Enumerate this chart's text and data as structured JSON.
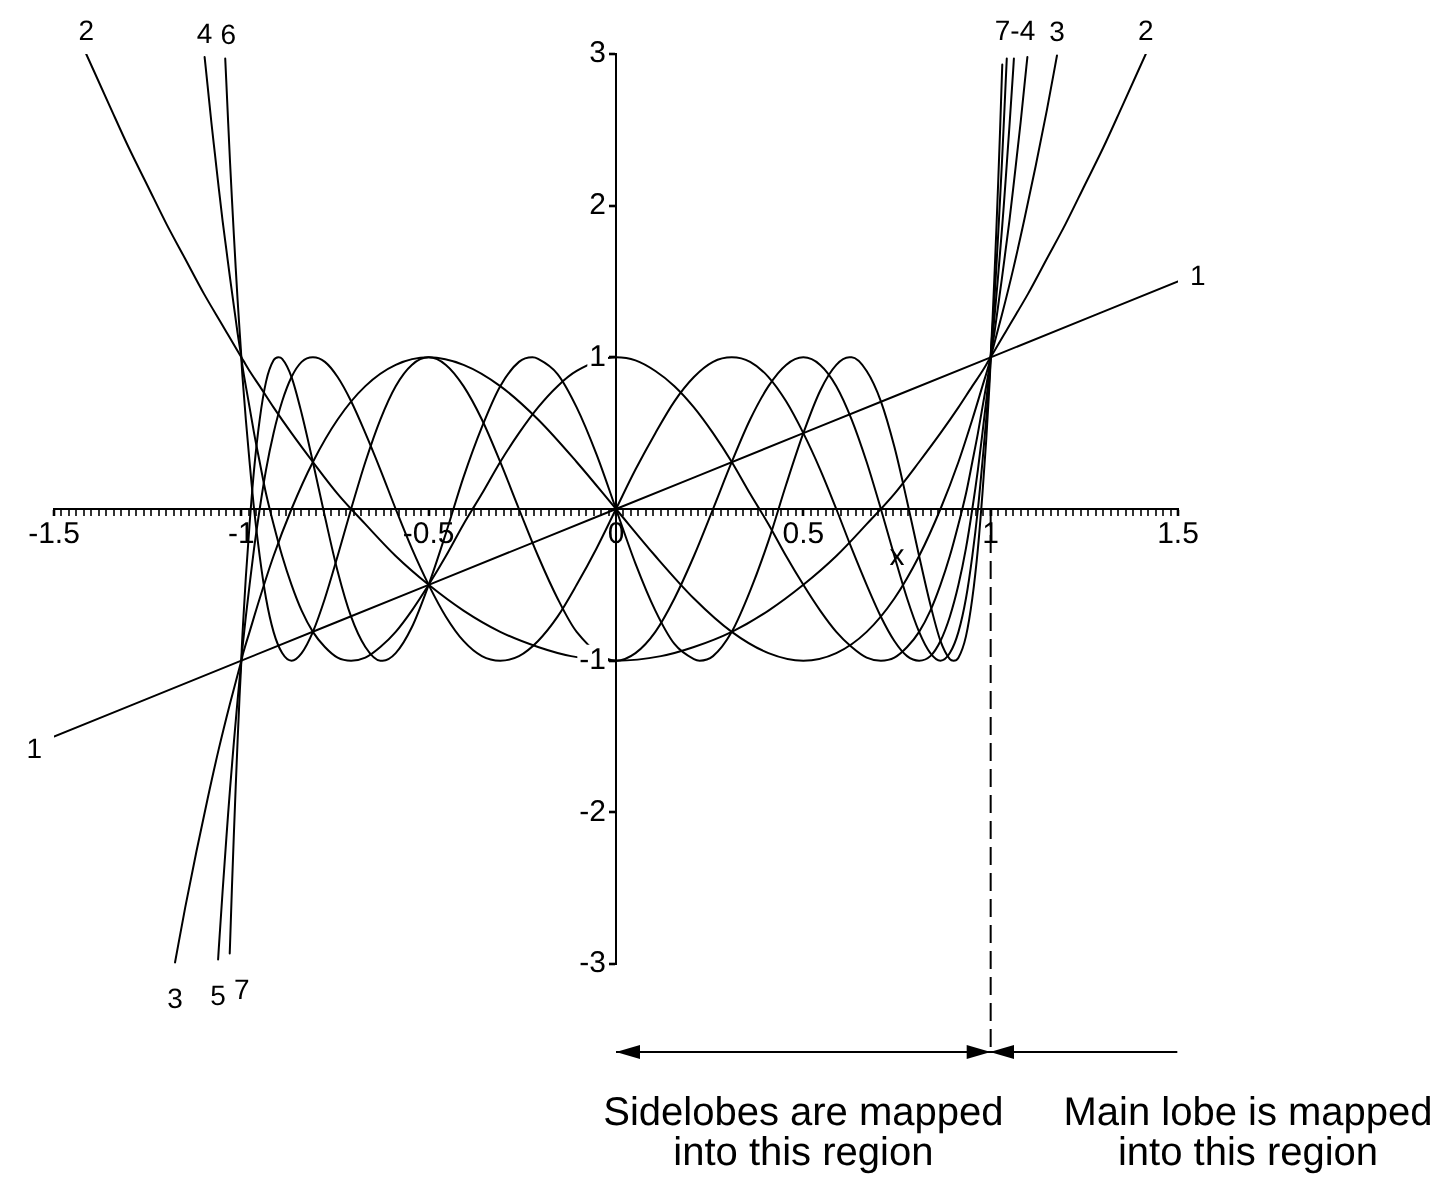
{
  "chart_data": {
    "type": "line",
    "xlabel": "x",
    "xlim": [
      -1.5,
      1.5
    ],
    "ylim": [
      -3,
      3
    ],
    "xticks": [
      -1.5,
      {
        "value": -1.48,
        "label": null
      },
      {
        "value": -1.46,
        "label": null
      },
      {
        "value": -1.44,
        "label": null
      },
      {
        "value": -1.42,
        "label": null
      },
      {
        "value": -1.4,
        "label": null
      },
      {
        "value": -1.38,
        "label": null
      },
      {
        "value": -1.36,
        "label": null
      },
      {
        "value": -1.34,
        "label": null
      },
      {
        "value": -1.32,
        "label": null
      },
      {
        "value": -1.3,
        "label": null
      },
      {
        "value": -1.28,
        "label": null
      },
      {
        "value": -1.26,
        "label": null
      },
      {
        "value": -1.24,
        "label": null
      },
      {
        "value": -1.22,
        "label": null
      },
      {
        "value": -1.2,
        "label": null
      },
      {
        "value": -1.18,
        "label": null
      },
      {
        "value": -1.16,
        "label": null
      },
      {
        "value": -1.14,
        "label": null
      },
      {
        "value": -1.12,
        "label": null
      },
      {
        "value": -1.1,
        "label": null
      },
      {
        "value": -1.08,
        "label": null
      },
      {
        "value": -1.06,
        "label": null
      },
      {
        "value": -1.04,
        "label": null
      },
      {
        "value": -1.02,
        "label": null
      },
      -1,
      {
        "value": -0.98,
        "label": null
      },
      {
        "value": -0.96,
        "label": null
      },
      {
        "value": -0.94,
        "label": null
      },
      {
        "value": -0.92,
        "label": null
      },
      {
        "value": -0.9,
        "label": null
      },
      {
        "value": -0.88,
        "label": null
      },
      {
        "value": -0.86,
        "label": null
      },
      {
        "value": -0.84,
        "label": null
      },
      {
        "value": -0.82,
        "label": null
      },
      {
        "value": -0.8,
        "label": null
      },
      {
        "value": -0.78,
        "label": null
      },
      {
        "value": -0.76,
        "label": null
      },
      {
        "value": -0.74,
        "label": null
      },
      {
        "value": -0.72,
        "label": null
      },
      {
        "value": -0.7,
        "label": null
      },
      {
        "value": -0.68,
        "label": null
      },
      {
        "value": -0.66,
        "label": null
      },
      {
        "value": -0.64,
        "label": null
      },
      {
        "value": -0.62,
        "label": null
      },
      {
        "value": -0.6,
        "label": null
      },
      {
        "value": -0.58,
        "label": null
      },
      {
        "value": -0.56,
        "label": null
      },
      {
        "value": -0.54,
        "label": null
      },
      {
        "value": -0.52,
        "label": null
      },
      -0.5,
      {
        "value": -0.48,
        "label": null
      },
      {
        "value": -0.46,
        "label": null
      },
      {
        "value": -0.44,
        "label": null
      },
      {
        "value": -0.42,
        "label": null
      },
      {
        "value": -0.4,
        "label": null
      },
      {
        "value": -0.38,
        "label": null
      },
      {
        "value": -0.36,
        "label": null
      },
      {
        "value": -0.34,
        "label": null
      },
      {
        "value": -0.32,
        "label": null
      },
      {
        "value": -0.3,
        "label": null
      },
      {
        "value": -0.28,
        "label": null
      },
      {
        "value": -0.26,
        "label": null
      },
      {
        "value": -0.24,
        "label": null
      },
      {
        "value": -0.22,
        "label": null
      },
      {
        "value": -0.2,
        "label": null
      },
      {
        "value": -0.18,
        "label": null
      },
      {
        "value": -0.16,
        "label": null
      },
      {
        "value": -0.14,
        "label": null
      },
      {
        "value": -0.12,
        "label": null
      },
      {
        "value": -0.1,
        "label": null
      },
      {
        "value": -0.08,
        "label": null
      },
      {
        "value": -0.06,
        "label": null
      },
      {
        "value": -0.04,
        "label": null
      },
      {
        "value": -0.02,
        "label": null
      },
      0,
      {
        "value": 0.02,
        "label": null
      },
      {
        "value": 0.04,
        "label": null
      },
      {
        "value": 0.06,
        "label": null
      },
      {
        "value": 0.08,
        "label": null
      },
      {
        "value": 0.1,
        "label": null
      },
      {
        "value": 0.12,
        "label": null
      },
      {
        "value": 0.14,
        "label": null
      },
      {
        "value": 0.16,
        "label": null
      },
      {
        "value": 0.18,
        "label": null
      },
      {
        "value": 0.2,
        "label": null
      },
      {
        "value": 0.22,
        "label": null
      },
      {
        "value": 0.24,
        "label": null
      },
      {
        "value": 0.26,
        "label": null
      },
      {
        "value": 0.28,
        "label": null
      },
      {
        "value": 0.3,
        "label": null
      },
      {
        "value": 0.32,
        "label": null
      },
      {
        "value": 0.34,
        "label": null
      },
      {
        "value": 0.36,
        "label": null
      },
      {
        "value": 0.38,
        "label": null
      },
      {
        "value": 0.4,
        "label": null
      },
      {
        "value": 0.42,
        "label": null
      },
      {
        "value": 0.44,
        "label": null
      },
      {
        "value": 0.46,
        "label": null
      },
      {
        "value": 0.48,
        "label": null
      },
      0.5,
      {
        "value": 0.52,
        "label": null
      },
      {
        "value": 0.54,
        "label": null
      },
      {
        "value": 0.56,
        "label": null
      },
      {
        "value": 0.58,
        "label": null
      },
      {
        "value": 0.6,
        "label": null
      },
      {
        "value": 0.62,
        "label": null
      },
      {
        "value": 0.64,
        "label": null
      },
      {
        "value": 0.66,
        "label": null
      },
      {
        "value": 0.68,
        "label": null
      },
      {
        "value": 0.7,
        "label": null
      },
      {
        "value": 0.72,
        "label": null
      },
      {
        "value": 0.74,
        "label": null
      },
      {
        "value": 0.76,
        "label": null
      },
      {
        "value": 0.78,
        "label": null
      },
      {
        "value": 0.8,
        "label": null
      },
      {
        "value": 0.82,
        "label": null
      },
      {
        "value": 0.84,
        "label": null
      },
      {
        "value": 0.86,
        "label": null
      },
      {
        "value": 0.88,
        "label": null
      },
      {
        "value": 0.9,
        "label": null
      },
      {
        "value": 0.92,
        "label": null
      },
      {
        "value": 0.94,
        "label": null
      },
      {
        "value": 0.96,
        "label": null
      },
      {
        "value": 0.98,
        "label": null
      },
      1,
      {
        "value": 1.02,
        "label": null
      },
      {
        "value": 1.04,
        "label": null
      },
      {
        "value": 1.06,
        "label": null
      },
      {
        "value": 1.08,
        "label": null
      },
      {
        "value": 1.1,
        "label": null
      },
      {
        "value": 1.12,
        "label": null
      },
      {
        "value": 1.14,
        "label": null
      },
      {
        "value": 1.16,
        "label": null
      },
      {
        "value": 1.18,
        "label": null
      },
      {
        "value": 1.2,
        "label": null
      },
      {
        "value": 1.22,
        "label": null
      },
      {
        "value": 1.24,
        "label": null
      },
      {
        "value": 1.26,
        "label": null
      },
      {
        "value": 1.28,
        "label": null
      },
      {
        "value": 1.3,
        "label": null
      },
      {
        "value": 1.32,
        "label": null
      },
      {
        "value": 1.34,
        "label": null
      },
      {
        "value": 1.36,
        "label": null
      },
      {
        "value": 1.38,
        "label": null
      },
      {
        "value": 1.4,
        "label": null
      },
      {
        "value": 1.42,
        "label": null
      },
      {
        "value": 1.44,
        "label": null
      },
      {
        "value": 1.46,
        "label": null
      },
      {
        "value": 1.48,
        "label": null
      },
      1.5
    ],
    "yticks": [
      -3,
      -2,
      -1,
      1,
      2,
      3
    ],
    "grid": false,
    "legend": false,
    "marker": "none",
    "series": [
      {
        "color": "#000000",
        "x": [
          -1.5,
          -1,
          -0.5,
          0,
          0.5,
          1,
          1.5
        ],
        "values": [
          -1.5,
          -1,
          -0.5,
          0,
          0.5,
          1,
          1.5
        ]
      },
      {
        "color": "#000000",
        "x": [
          -1.414,
          -1.35,
          -1.3,
          -1.25,
          -1.2,
          -1.15,
          -1.1,
          -1.05,
          -1,
          -0.995,
          -0.978,
          -0.951,
          -0.914,
          -0.866,
          -0.809,
          -0.743,
          -0.669,
          -0.588,
          -0.5,
          -0.407,
          -0.309,
          -0.208,
          -0.12,
          0,
          0.12,
          0.208,
          0.309,
          0.407,
          0.5,
          0.588,
          0.669,
          0.743,
          0.809,
          0.866,
          0.914,
          0.951,
          0.978,
          0.995,
          1,
          1.05,
          1.1,
          1.15,
          1.2,
          1.25,
          1.3,
          1.35,
          1.414
        ],
        "values": [
          3,
          2.65,
          2.38,
          2.13,
          1.88,
          1.65,
          1.42,
          1.21,
          1,
          0.98,
          0.91,
          0.81,
          0.67,
          0.5,
          0.31,
          0.1,
          -0.1,
          -0.31,
          -0.5,
          -0.67,
          -0.81,
          -0.91,
          -0.97,
          -1,
          -0.97,
          -0.91,
          -0.81,
          -0.67,
          -0.5,
          -0.31,
          -0.1,
          0.1,
          0.31,
          0.5,
          0.67,
          0.81,
          0.91,
          0.98,
          1,
          1.21,
          1.42,
          1.65,
          1.88,
          2.13,
          2.38,
          2.65,
          3
        ]
      },
      {
        "color": "#000000",
        "x": [
          -1.177,
          -1.15,
          -1.12,
          -1.09,
          -1.06,
          -1.03,
          -1,
          -0.995,
          -0.978,
          -0.951,
          -0.914,
          -0.866,
          -0.809,
          -0.743,
          -0.669,
          -0.588,
          -0.5,
          -0.407,
          -0.309,
          -0.208,
          -0.105,
          0,
          0.105,
          0.208,
          0.309,
          0.407,
          0.5,
          0.588,
          0.669,
          0.743,
          0.809,
          0.866,
          0.914,
          0.951,
          0.978,
          0.995,
          1,
          1.03,
          1.06,
          1.09,
          1.12,
          1.15,
          1.177
        ],
        "values": [
          -2.99,
          -2.63,
          -2.26,
          -1.91,
          -1.58,
          -1.28,
          -1,
          -0.95,
          -0.81,
          -0.59,
          -0.31,
          0,
          0.31,
          0.59,
          0.81,
          0.95,
          1,
          0.95,
          0.81,
          0.59,
          0.31,
          0,
          -0.31,
          -0.59,
          -0.81,
          -0.95,
          -1,
          -0.95,
          -0.81,
          -0.59,
          -0.31,
          0,
          0.31,
          0.59,
          0.81,
          0.95,
          1,
          1.28,
          1.58,
          1.91,
          2.26,
          2.63,
          2.99
        ]
      },
      {
        "color": "#000000",
        "x": [
          -1.098,
          -1.09,
          -1.08,
          -1.07,
          -1.06,
          -1.05,
          -1.04,
          -1.03,
          -1.02,
          -1.01,
          -1,
          -0.999,
          -0.995,
          -0.988,
          -0.978,
          -0.966,
          -0.951,
          -0.934,
          -0.914,
          -0.891,
          -0.866,
          -0.839,
          -0.809,
          -0.777,
          -0.743,
          -0.707,
          -0.669,
          -0.629,
          -0.588,
          -0.545,
          -0.5,
          -0.454,
          -0.407,
          -0.358,
          -0.309,
          -0.259,
          -0.208,
          -0.156,
          -0.105,
          0,
          0.052,
          0.105,
          0.156,
          0.208,
          0.259,
          0.309,
          0.358,
          0.407,
          0.454,
          0.5,
          0.545,
          0.588,
          0.629,
          0.669,
          0.707,
          0.743,
          0.777,
          0.809,
          0.839,
          0.866,
          0.891,
          0.914,
          0.934,
          0.951,
          0.966,
          0.978,
          0.988,
          0.995,
          0.999,
          1,
          1.01,
          1.02,
          1.03,
          1.04,
          1.05,
          1.06,
          1.07,
          1.08,
          1.09,
          1.098
        ],
        "values": [
          2.98,
          2.79,
          2.55,
          2.33,
          2.11,
          1.9,
          1.71,
          1.52,
          1.34,
          1.16,
          1,
          0.98,
          0.91,
          0.81,
          0.67,
          0.5,
          0.31,
          0.1,
          -0.1,
          -0.31,
          -0.5,
          -0.67,
          -0.81,
          -0.91,
          -0.98,
          -1,
          -0.98,
          -0.91,
          -0.81,
          -0.67,
          -0.5,
          -0.31,
          -0.1,
          0.1,
          0.31,
          0.5,
          0.67,
          0.81,
          0.91,
          1,
          0.98,
          0.91,
          0.81,
          0.67,
          0.5,
          0.31,
          0.1,
          -0.1,
          -0.31,
          -0.5,
          -0.67,
          -0.81,
          -0.91,
          -0.98,
          -1,
          -0.98,
          -0.91,
          -0.81,
          -0.67,
          -0.5,
          -0.31,
          -0.1,
          0.1,
          0.31,
          0.5,
          0.67,
          0.81,
          0.91,
          0.98,
          1,
          1.16,
          1.34,
          1.52,
          1.71,
          1.9,
          2.11,
          2.33,
          2.55,
          2.79,
          2.98
        ]
      },
      {
        "color": "#000000",
        "x": [
          -1.062,
          -1.06,
          -1.05,
          -1.04,
          -1.035,
          -1.03,
          -1.025,
          -1.02,
          -1.015,
          -1.01,
          -1.005,
          -1,
          -0.999,
          -0.995,
          -0.988,
          -0.978,
          -0.966,
          -0.951,
          -0.934,
          -0.914,
          -0.891,
          -0.866,
          -0.839,
          -0.809,
          -0.777,
          -0.743,
          -0.707,
          -0.669,
          -0.629,
          -0.588,
          -0.545,
          -0.5,
          -0.454,
          -0.407,
          -0.358,
          -0.309,
          -0.259,
          -0.208,
          -0.156,
          -0.105,
          -0.052,
          0,
          0.052,
          0.105,
          0.156,
          0.208,
          0.259,
          0.309,
          0.358,
          0.407,
          0.454,
          0.5,
          0.545,
          0.588,
          0.629,
          0.669,
          0.707,
          0.743,
          0.777,
          0.809,
          0.839,
          0.866,
          0.891,
          0.914,
          0.934,
          0.951,
          0.966,
          0.978,
          0.988,
          0.995,
          0.999,
          1,
          1.005,
          1.01,
          1.015,
          1.02,
          1.025,
          1.03,
          1.035,
          1.04,
          1.05,
          1.06,
          1.062
        ],
        "values": [
          -2.97,
          -2.89,
          -2.52,
          -2.17,
          -2,
          -1.84,
          -1.69,
          -1.54,
          -1.4,
          -1.26,
          -1.13,
          -1,
          -0.97,
          -0.87,
          -0.71,
          -0.5,
          -0.26,
          0,
          0.26,
          0.5,
          0.71,
          0.87,
          0.97,
          1,
          0.97,
          0.87,
          0.71,
          0.5,
          0.26,
          0,
          -0.26,
          -0.5,
          -0.71,
          -0.87,
          -0.97,
          -1,
          -0.97,
          -0.87,
          -0.71,
          -0.5,
          -0.26,
          0,
          0.26,
          0.5,
          0.71,
          0.87,
          0.97,
          1,
          0.97,
          0.87,
          0.71,
          0.5,
          0.26,
          0,
          -0.26,
          -0.5,
          -0.71,
          -0.87,
          -0.97,
          -1,
          -0.97,
          -0.87,
          -0.71,
          -0.5,
          -0.26,
          0,
          0.26,
          0.5,
          0.71,
          0.87,
          0.97,
          1,
          1.13,
          1.26,
          1.4,
          1.54,
          1.69,
          1.84,
          2,
          2.17,
          2.52,
          2.89,
          2.97
        ]
      },
      {
        "color": "#000000",
        "x": [
          -1.043,
          -1.04,
          -1.035,
          -1.03,
          -1.025,
          -1.02,
          -1.015,
          -1.01,
          -1.005,
          -1,
          -0.999,
          -0.995,
          -0.988,
          -0.978,
          -0.966,
          -0.951,
          -0.934,
          -0.914,
          -0.891,
          -0.866,
          -0.839,
          -0.809,
          -0.777,
          -0.743,
          -0.707,
          -0.669,
          -0.629,
          -0.588,
          -0.545,
          -0.5,
          -0.454,
          -0.407,
          -0.358,
          -0.309,
          -0.259,
          -0.208,
          -0.156,
          -0.105,
          0,
          0.052,
          0.105,
          0.156,
          0.208,
          0.259,
          0.309,
          0.358,
          0.407,
          0.454,
          0.5,
          0.545,
          0.588,
          0.629,
          0.669,
          0.707,
          0.743,
          0.777,
          0.809,
          0.839,
          0.866,
          0.891,
          0.914,
          0.934,
          0.951,
          0.966,
          0.978,
          0.988,
          0.995,
          0.999,
          1,
          1.005,
          1.01,
          1.015,
          1.02,
          1.025,
          1.03,
          1.035,
          1.04,
          1.043
        ],
        "values": [
          2.97,
          2.81,
          2.54,
          2.28,
          2.04,
          1.81,
          1.59,
          1.38,
          1.19,
          1,
          0.95,
          0.81,
          0.59,
          0.31,
          0,
          -0.31,
          -0.59,
          -0.81,
          -0.95,
          -1,
          -0.95,
          -0.81,
          -0.59,
          -0.31,
          0,
          0.31,
          0.59,
          0.81,
          0.95,
          1,
          0.95,
          0.81,
          0.59,
          0.31,
          0,
          -0.31,
          -0.59,
          -0.81,
          -1,
          -0.95,
          -0.81,
          -0.59,
          -0.31,
          0,
          0.31,
          0.59,
          0.81,
          0.95,
          1,
          0.95,
          0.81,
          0.59,
          0.31,
          0,
          -0.31,
          -0.59,
          -0.81,
          -0.95,
          -1,
          -0.95,
          -0.81,
          -0.59,
          -0.31,
          0,
          0.31,
          0.59,
          0.81,
          0.95,
          1,
          1.19,
          1.38,
          1.59,
          1.81,
          2.04,
          2.28,
          2.54,
          2.81,
          2.97
        ]
      },
      {
        "color": "#000000",
        "x": [
          -1.031,
          -1.03,
          -1.025,
          -1.02,
          -1.015,
          -1.01,
          -1.005,
          -1,
          -0.999,
          -0.995,
          -0.988,
          -0.978,
          -0.966,
          -0.951,
          -0.934,
          -0.914,
          -0.901,
          -0.891,
          -0.866,
          -0.839,
          -0.809,
          -0.777,
          -0.743,
          -0.707,
          -0.669,
          -0.629,
          -0.623,
          -0.588,
          -0.545,
          -0.5,
          -0.454,
          -0.407,
          -0.358,
          -0.309,
          -0.259,
          -0.223,
          -0.208,
          -0.156,
          -0.105,
          -0.052,
          0,
          0.052,
          0.105,
          0.156,
          0.208,
          0.223,
          0.259,
          0.309,
          0.358,
          0.407,
          0.454,
          0.5,
          0.545,
          0.588,
          0.623,
          0.629,
          0.669,
          0.707,
          0.743,
          0.777,
          0.809,
          0.839,
          0.866,
          0.891,
          0.901,
          0.914,
          0.934,
          0.951,
          0.966,
          0.978,
          0.988,
          0.995,
          0.999,
          1,
          1.005,
          1.01,
          1.015,
          1.02,
          1.025,
          1.03,
          1.031
        ],
        "values": [
          -2.93,
          -2.86,
          -2.49,
          -2.15,
          -1.83,
          -1.53,
          -1.25,
          -1,
          -0.93,
          -0.74,
          -0.45,
          -0.1,
          0.26,
          0.59,
          0.84,
          0.98,
          1,
          0.99,
          0.87,
          0.63,
          0.31,
          -0.05,
          -0.41,
          -0.71,
          -0.91,
          -1,
          -1,
          -0.95,
          -0.78,
          -0.5,
          -0.16,
          0.21,
          0.54,
          0.81,
          0.97,
          1,
          0.99,
          0.89,
          0.67,
          0.36,
          0,
          -0.36,
          -0.67,
          -0.89,
          -0.99,
          -1,
          -0.97,
          -0.81,
          -0.54,
          -0.21,
          0.16,
          0.5,
          0.78,
          0.95,
          1,
          1,
          0.91,
          0.71,
          0.41,
          0.05,
          -0.31,
          -0.63,
          -0.87,
          -0.99,
          -1,
          -0.98,
          -0.84,
          -0.59,
          -0.26,
          0.1,
          0.45,
          0.74,
          0.93,
          1,
          1.25,
          1.53,
          1.83,
          2.15,
          2.49,
          2.86,
          2.93
        ]
      }
    ],
    "annotations": [
      {
        "text": "2",
        "x": -1.414,
        "y": 3
      },
      {
        "text": "4",
        "x": -1.098,
        "y": 2.98
      },
      {
        "text": "6",
        "x": -1.043,
        "y": 2.97
      },
      {
        "text": "7-4",
        "x": 1.065,
        "y": 3
      },
      {
        "text": "3",
        "x": 1.177,
        "y": 2.99
      },
      {
        "text": "2",
        "x": 1.414,
        "y": 3
      },
      {
        "text": "1",
        "x": -1.5,
        "y": -1.5
      },
      {
        "text": "1",
        "x": 1.5,
        "y": 1.5
      },
      {
        "text": "3",
        "x": -1.177,
        "y": -2.99
      },
      {
        "text": "5",
        "x": -1.062,
        "y": -2.97
      },
      {
        "text": "7",
        "x": -1.031,
        "y": -2.93
      },
      "Sidelobes are mapped into this region",
      "Main lobe is mapped into this region"
    ],
    "ref_lines": [
      {
        "axis": "x",
        "value": 1,
        "line_style": "dashed"
      }
    ]
  }
}
